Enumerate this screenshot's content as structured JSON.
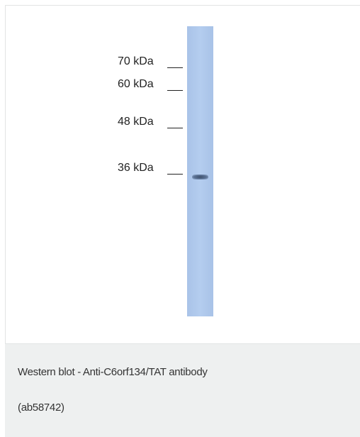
{
  "figure": {
    "markers": [
      "70 kDa",
      "60 kDa",
      "48 kDa",
      "36 kDa"
    ]
  },
  "caption": {
    "lines": [
      "Western blot - Anti-C6orf134/TAT antibody",
      "(ab58742)"
    ]
  }
}
